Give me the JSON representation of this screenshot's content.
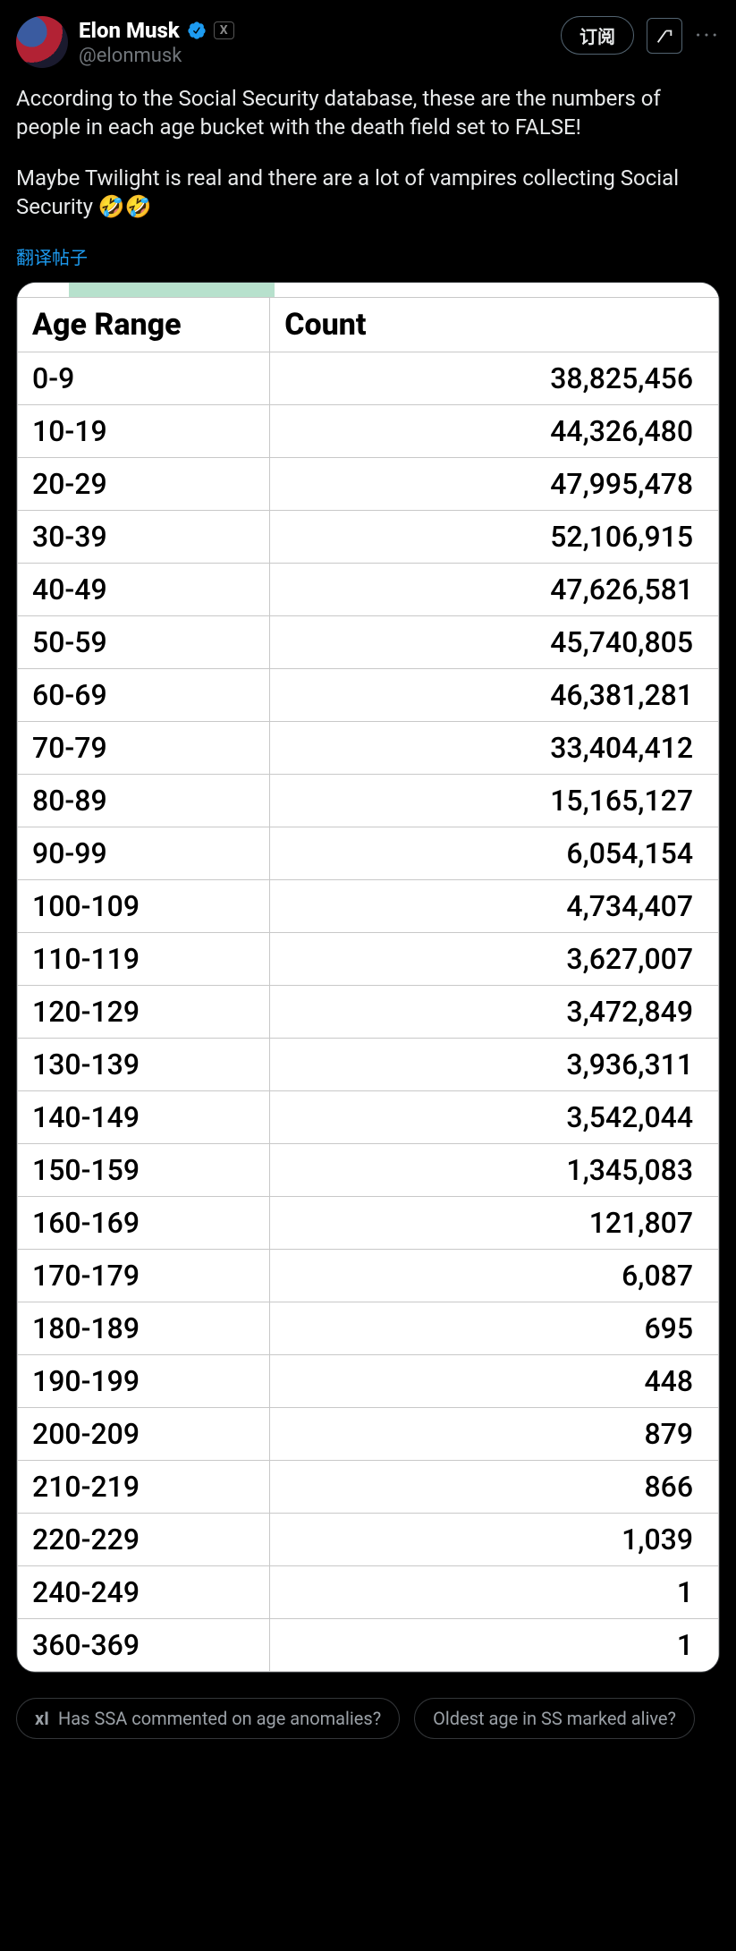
{
  "author": {
    "display_name": "Elon Musk",
    "handle": "@elonmusk",
    "verified": true,
    "x_badge": "X"
  },
  "header": {
    "subscribe_label": "订阅",
    "more_label": "···"
  },
  "tweet": {
    "para1": "According to the Social Security database, these are the numbers of people in each age bucket with the death field set to FALSE!",
    "para2": "Maybe Twilight is real and there are a lot of vampires collecting Social Security 🤣🤣",
    "translate_label": "翻译帖子"
  },
  "table": {
    "type": "table",
    "background_color": "#ffffff",
    "grid_color": "#c8c8c8",
    "header_font_weight": 800,
    "cell_fontsize": 32,
    "columns": [
      "Age Range",
      "Count"
    ],
    "column_align": [
      "left",
      "right"
    ],
    "rows": [
      [
        "0-9",
        "38,825,456"
      ],
      [
        "10-19",
        "44,326,480"
      ],
      [
        "20-29",
        "47,995,478"
      ],
      [
        "30-39",
        "52,106,915"
      ],
      [
        "40-49",
        "47,626,581"
      ],
      [
        "50-59",
        "45,740,805"
      ],
      [
        "60-69",
        "46,381,281"
      ],
      [
        "70-79",
        "33,404,412"
      ],
      [
        "80-89",
        "15,165,127"
      ],
      [
        "90-99",
        "6,054,154"
      ],
      [
        "100-109",
        "4,734,407"
      ],
      [
        "110-119",
        "3,627,007"
      ],
      [
        "120-129",
        "3,472,849"
      ],
      [
        "130-139",
        "3,936,311"
      ],
      [
        "140-149",
        "3,542,044"
      ],
      [
        "150-159",
        "1,345,083"
      ],
      [
        "160-169",
        "121,807"
      ],
      [
        "170-179",
        "6,087"
      ],
      [
        "180-189",
        "695"
      ],
      [
        "190-199",
        "448"
      ],
      [
        "200-209",
        "879"
      ],
      [
        "210-219",
        "866"
      ],
      [
        "220-229",
        "1,039"
      ],
      [
        "240-249",
        "1"
      ],
      [
        "360-369",
        "1"
      ]
    ]
  },
  "suggestions": {
    "items": [
      "Has SSA commented on age anomalies?",
      "Oldest age in SS marked alive?"
    ],
    "prefix": "xI"
  },
  "colors": {
    "bg": "#000000",
    "text": "#e7e9ea",
    "muted": "#71767b",
    "link": "#1d9bf0",
    "border": "#2f3336",
    "table_selection": "#b7e1cd"
  }
}
